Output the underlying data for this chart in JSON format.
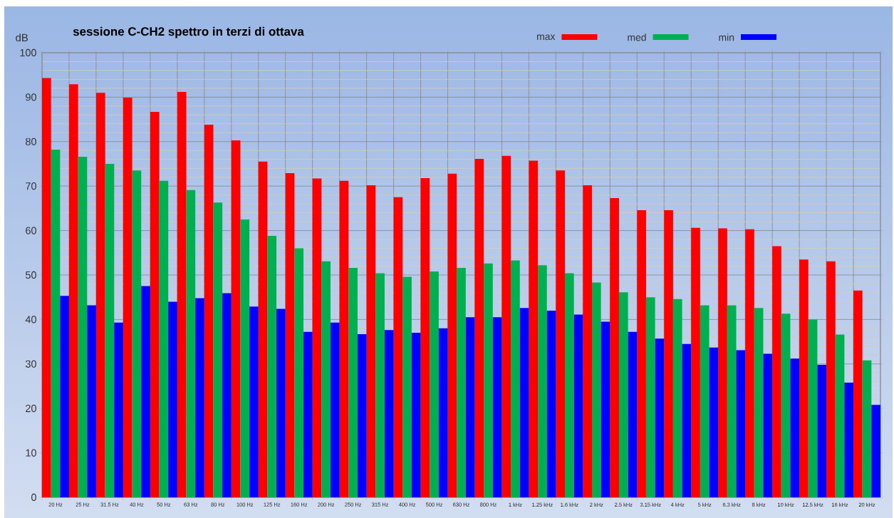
{
  "chart_data": {
    "type": "bar",
    "title": "sessione C-CH2 spettro in terzi di ottava",
    "ylabel": "dB",
    "categories": [
      "20 Hz",
      "25 Hz",
      "31.5 Hz",
      "40 Hz",
      "50 Hz",
      "63 Hz",
      "80 Hz",
      "100 Hz",
      "125 Hz",
      "160 Hz",
      "200 Hz",
      "250 Hz",
      "315 Hz",
      "400 Hz",
      "500 Hz",
      "630 Hz",
      "800 Hz",
      "1 kHz",
      "1.25 kHz",
      "1.6 kHz",
      "2 kHz",
      "2.5 kHz",
      "3.15 kHz",
      "4 kHz",
      "5 kHz",
      "6.3 kHz",
      "8 kHz",
      "10 kHz",
      "12.5 kHz",
      "16 kHz",
      "20 kHz"
    ],
    "series": [
      {
        "name": "max",
        "color": "#ff0000",
        "values": [
          94.3,
          92.9,
          91.0,
          89.9,
          86.7,
          91.2,
          83.8,
          80.3,
          75.5,
          72.9,
          71.7,
          71.2,
          70.2,
          67.5,
          71.8,
          72.8,
          76.1,
          76.8,
          75.7,
          73.5,
          70.2,
          67.3,
          64.6,
          64.6,
          60.6,
          60.5,
          60.3,
          56.5,
          53.5,
          53.1,
          46.5
        ]
      },
      {
        "name": "med",
        "color": "#00b050",
        "values": [
          78.2,
          76.6,
          75.0,
          73.5,
          71.2,
          69.1,
          66.3,
          62.5,
          58.8,
          56.0,
          53.1,
          51.6,
          50.4,
          49.6,
          50.8,
          51.6,
          52.6,
          53.3,
          52.2,
          50.4,
          48.3,
          46.1,
          45.0,
          44.6,
          43.2,
          43.2,
          42.6,
          41.3,
          40.0,
          36.6,
          30.8
        ]
      },
      {
        "name": "min",
        "color": "#0000ff",
        "values": [
          45.3,
          43.2,
          39.3,
          47.5,
          44.0,
          44.8,
          45.9,
          42.9,
          42.4,
          37.2,
          39.3,
          36.7,
          37.6,
          37.0,
          38.0,
          40.5,
          40.5,
          42.6,
          42.0,
          41.1,
          39.5,
          37.2,
          35.7,
          34.5,
          33.7,
          33.1,
          32.3,
          31.2,
          29.8,
          25.8,
          20.8
        ]
      }
    ],
    "ylim": [
      0,
      100
    ],
    "yticks": [
      0,
      10,
      20,
      30,
      40,
      50,
      60,
      70,
      80,
      90,
      100
    ],
    "grid": true,
    "legend": "top right"
  }
}
